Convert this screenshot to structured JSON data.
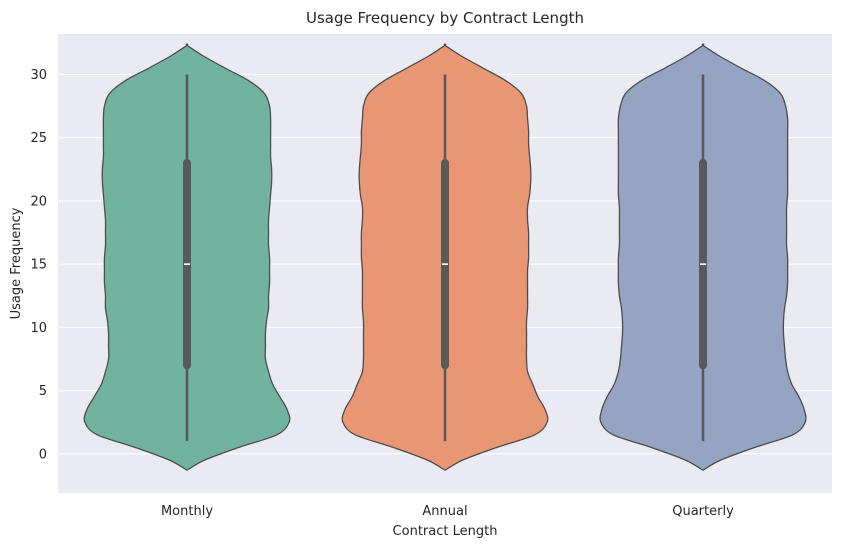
{
  "chart_data": {
    "type": "violin",
    "title": "Usage Frequency by Contract Length",
    "xlabel": "Contract Length",
    "ylabel": "Usage Frequency",
    "ylim": [
      -3.1,
      33.2
    ],
    "yticks": [
      0,
      5,
      10,
      15,
      20,
      25,
      30
    ],
    "grid": true,
    "background": "#eaeaf2",
    "edge_color": "#4d4d4d",
    "categories": [
      "Monthly",
      "Annual",
      "Quarterly"
    ],
    "series": [
      {
        "category": "Monthly",
        "color": "#72b39f",
        "min": 1,
        "q1": 7,
        "median": 15,
        "q3": 23,
        "max": 30,
        "kde_min": -1.3,
        "kde_max": 32.3,
        "density": [
          [
            -1.3,
            0.0
          ],
          [
            -0.5,
            0.17
          ],
          [
            0.5,
            0.5
          ],
          [
            1.5,
            0.87
          ],
          [
            2.5,
            0.99
          ],
          [
            3.5,
            0.97
          ],
          [
            4.5,
            0.9
          ],
          [
            5.5,
            0.83
          ],
          [
            6.5,
            0.79
          ],
          [
            7.5,
            0.76
          ],
          [
            8.5,
            0.76
          ],
          [
            9.5,
            0.76
          ],
          [
            10.5,
            0.77
          ],
          [
            11.5,
            0.79
          ],
          [
            12.5,
            0.79
          ],
          [
            13.5,
            0.8
          ],
          [
            14.5,
            0.8
          ],
          [
            15.5,
            0.8
          ],
          [
            16.5,
            0.79
          ],
          [
            17.5,
            0.79
          ],
          [
            18.5,
            0.79
          ],
          [
            19.5,
            0.8
          ],
          [
            20.5,
            0.81
          ],
          [
            21.5,
            0.82
          ],
          [
            22.5,
            0.82
          ],
          [
            23.5,
            0.81
          ],
          [
            24.5,
            0.81
          ],
          [
            25.5,
            0.81
          ],
          [
            26.5,
            0.81
          ],
          [
            27.5,
            0.8
          ],
          [
            28.5,
            0.75
          ],
          [
            29.5,
            0.6
          ],
          [
            30.5,
            0.37
          ],
          [
            31.5,
            0.15
          ],
          [
            32.3,
            0.0
          ]
        ]
      },
      {
        "category": "Annual",
        "color": "#e99674",
        "min": 1,
        "q1": 7,
        "median": 15,
        "q3": 23,
        "max": 30,
        "kde_min": -1.3,
        "kde_max": 32.3,
        "density": [
          [
            -1.3,
            0.0
          ],
          [
            -0.5,
            0.17
          ],
          [
            0.5,
            0.5
          ],
          [
            1.5,
            0.87
          ],
          [
            2.5,
            0.99
          ],
          [
            3.5,
            0.97
          ],
          [
            4.5,
            0.9
          ],
          [
            5.5,
            0.85
          ],
          [
            6.5,
            0.8
          ],
          [
            7.5,
            0.79
          ],
          [
            8.5,
            0.79
          ],
          [
            9.5,
            0.79
          ],
          [
            10.5,
            0.79
          ],
          [
            11.5,
            0.8
          ],
          [
            12.5,
            0.8
          ],
          [
            13.5,
            0.8
          ],
          [
            14.5,
            0.8
          ],
          [
            15.5,
            0.81
          ],
          [
            16.5,
            0.81
          ],
          [
            17.5,
            0.81
          ],
          [
            18.5,
            0.8
          ],
          [
            19.5,
            0.8
          ],
          [
            20.5,
            0.82
          ],
          [
            21.5,
            0.83
          ],
          [
            22.5,
            0.83
          ],
          [
            23.5,
            0.82
          ],
          [
            24.5,
            0.81
          ],
          [
            25.5,
            0.81
          ],
          [
            26.5,
            0.8
          ],
          [
            27.5,
            0.79
          ],
          [
            28.5,
            0.74
          ],
          [
            29.5,
            0.59
          ],
          [
            30.5,
            0.37
          ],
          [
            31.5,
            0.15
          ],
          [
            32.3,
            0.0
          ]
        ]
      },
      {
        "category": "Quarterly",
        "color": "#95a4c3",
        "min": 1,
        "q1": 7,
        "median": 15,
        "q3": 23,
        "max": 30,
        "kde_min": -1.3,
        "kde_max": 32.3,
        "density": [
          [
            -1.3,
            0.0
          ],
          [
            -0.5,
            0.17
          ],
          [
            0.5,
            0.5
          ],
          [
            1.5,
            0.87
          ],
          [
            2.5,
            0.99
          ],
          [
            3.5,
            0.98
          ],
          [
            4.5,
            0.93
          ],
          [
            5.5,
            0.86
          ],
          [
            6.5,
            0.82
          ],
          [
            7.5,
            0.8
          ],
          [
            8.5,
            0.79
          ],
          [
            9.5,
            0.78
          ],
          [
            10.5,
            0.78
          ],
          [
            11.5,
            0.79
          ],
          [
            12.5,
            0.81
          ],
          [
            13.5,
            0.82
          ],
          [
            14.5,
            0.82
          ],
          [
            15.5,
            0.82
          ],
          [
            16.5,
            0.81
          ],
          [
            17.5,
            0.81
          ],
          [
            18.5,
            0.81
          ],
          [
            19.5,
            0.81
          ],
          [
            20.5,
            0.82
          ],
          [
            21.5,
            0.82
          ],
          [
            22.5,
            0.82
          ],
          [
            23.5,
            0.82
          ],
          [
            24.5,
            0.82
          ],
          [
            25.5,
            0.82
          ],
          [
            26.5,
            0.82
          ],
          [
            27.5,
            0.8
          ],
          [
            28.5,
            0.75
          ],
          [
            29.5,
            0.6
          ],
          [
            30.5,
            0.37
          ],
          [
            31.5,
            0.15
          ],
          [
            32.3,
            0.0
          ]
        ]
      }
    ]
  }
}
